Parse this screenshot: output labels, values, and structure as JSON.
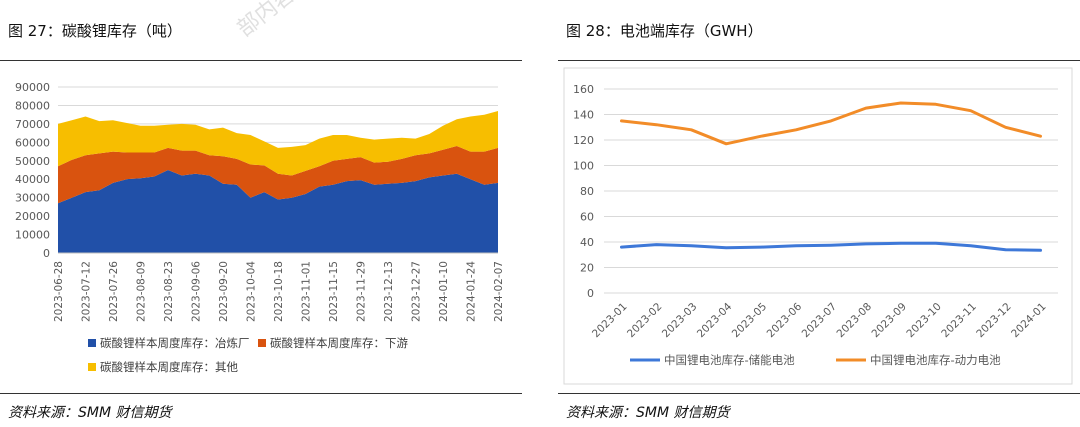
{
  "left_panel": {
    "title": "图 27：碳酸锂库存（吨）",
    "watermark": "部内容",
    "source": "资料来源：SMM  财信期货"
  },
  "right_panel": {
    "title": "图 28：电池端库存（GWH）",
    "source": "资料来源：SMM  财信期货"
  },
  "colors": {
    "smelter": "#2150A8",
    "downstream": "#D9530F",
    "other": "#F7BE00",
    "storage": "#3E78D8",
    "power": "#F28C28"
  },
  "chart_data": [
    {
      "type": "area",
      "stacked": true,
      "ylim": [
        0,
        90000
      ],
      "yticks": [
        "0",
        "10000",
        "20000",
        "30000",
        "40000",
        "50000",
        "60000",
        "70000",
        "80000",
        "90000"
      ],
      "x_tick_labels": [
        "2023-06-28",
        "2023-07-12",
        "2023-07-26",
        "2023-08-09",
        "2023-08-23",
        "2023-09-06",
        "2023-09-20",
        "2023-10-04",
        "2023-10-18",
        "2023-11-01",
        "2023-11-15",
        "2023-11-29",
        "2023-12-13",
        "2023-12-27",
        "2024-01-10",
        "2024-01-24",
        "2024-02-07"
      ],
      "legend_placement": "bottom",
      "series": [
        {
          "name": "碳酸锂样本周度库存：冶炼厂",
          "values": [
            27000,
            30000,
            33000,
            34000,
            38000,
            40000,
            40500,
            41500,
            45000,
            42000,
            43000,
            42000,
            37500,
            37000,
            30000,
            33000,
            29000,
            30000,
            32000,
            36000,
            37000,
            39000,
            39500,
            37000,
            37500,
            38000,
            39000,
            41000,
            42000,
            43000,
            40000,
            37000,
            38000
          ]
        },
        {
          "name": "碳酸锂样本周度库存：下游",
          "values": [
            20000,
            20500,
            20000,
            20000,
            17000,
            14500,
            14000,
            13000,
            12000,
            13500,
            12500,
            11000,
            15000,
            14000,
            18000,
            14500,
            14000,
            12000,
            12500,
            11000,
            13000,
            12000,
            12500,
            12000,
            12000,
            13000,
            14000,
            13000,
            14000,
            15000,
            15000,
            18000,
            19000
          ]
        },
        {
          "name": "碳酸锂样本周度库存：其他",
          "values": [
            23000,
            21500,
            21000,
            17500,
            17000,
            16000,
            14500,
            14500,
            12500,
            14500,
            14000,
            14000,
            15500,
            14000,
            16000,
            13000,
            14000,
            15500,
            14000,
            15000,
            14000,
            13000,
            10500,
            12500,
            12500,
            11500,
            9000,
            10500,
            13000,
            14500,
            19000,
            20000,
            20000
          ]
        }
      ]
    },
    {
      "type": "line",
      "ylim": [
        0,
        160
      ],
      "yticks": [
        "0",
        "20",
        "40",
        "60",
        "80",
        "100",
        "120",
        "140",
        "160"
      ],
      "categories": [
        "2023-01",
        "2023-02",
        "2023-03",
        "2023-04",
        "2023-05",
        "2023-06",
        "2023-07",
        "2023-08",
        "2023-09",
        "2023-10",
        "2023-11",
        "2023-12",
        "2024-01"
      ],
      "legend_placement": "bottom",
      "series": [
        {
          "name": "中国锂电池库存-储能电池",
          "values": [
            36,
            38,
            37,
            35.5,
            36,
            37,
            37.5,
            38.5,
            39,
            39,
            37,
            34,
            33.5
          ]
        },
        {
          "name": "中国锂电池库存-动力电池",
          "values": [
            135,
            132,
            128,
            117,
            123,
            128,
            135,
            145,
            149,
            148,
            143,
            130,
            123
          ]
        }
      ]
    }
  ]
}
